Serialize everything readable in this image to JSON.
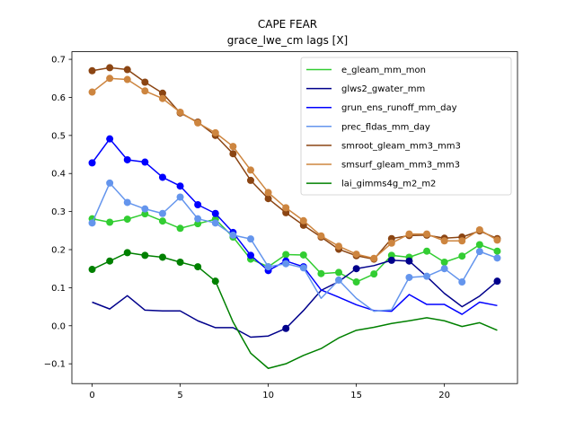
{
  "chart_data": {
    "type": "line",
    "title": "CAPE FEAR",
    "subtitle": "grace_lwe_cm lags [X]",
    "xlabel": "",
    "ylabel": "",
    "xlim": [
      -1.15,
      24.15
    ],
    "ylim": [
      -0.152,
      0.72
    ],
    "xticks": [
      0,
      5,
      10,
      15,
      20
    ],
    "yticks": [
      -0.1,
      0.0,
      0.1,
      0.2,
      0.3,
      0.4,
      0.5,
      0.6,
      0.7
    ],
    "ytick_labels": [
      "−0.1",
      "0.0",
      "0.1",
      "0.2",
      "0.3",
      "0.4",
      "0.5",
      "0.6",
      "0.7"
    ],
    "grid": false,
    "legend_position": "upper-right",
    "x": [
      0,
      1,
      2,
      3,
      4,
      5,
      6,
      7,
      8,
      9,
      10,
      11,
      12,
      13,
      14,
      15,
      16,
      17,
      18,
      19,
      20,
      21,
      22,
      23
    ],
    "series": [
      {
        "name": "e_gleam_mm_mon",
        "color": "#32cd32",
        "values": [
          0.281,
          0.272,
          0.28,
          0.294,
          0.275,
          0.256,
          0.268,
          0.28,
          0.233,
          0.175,
          0.155,
          0.187,
          0.186,
          0.137,
          0.14,
          0.115,
          0.136,
          0.185,
          0.18,
          0.196,
          0.167,
          0.183,
          0.213,
          0.196
        ],
        "markers": [
          true,
          true,
          true,
          true,
          true,
          true,
          true,
          true,
          true,
          true,
          true,
          true,
          true,
          true,
          true,
          true,
          true,
          true,
          true,
          true,
          true,
          true,
          true,
          true
        ]
      },
      {
        "name": "glws2_gwater_mm",
        "color": "#00008b",
        "values": [
          0.062,
          0.044,
          0.079,
          0.041,
          0.039,
          0.039,
          0.013,
          -0.005,
          -0.005,
          -0.03,
          -0.027,
          -0.007,
          0.04,
          0.093,
          0.116,
          0.15,
          0.158,
          0.172,
          0.17,
          0.129,
          0.085,
          0.05,
          0.078,
          0.117
        ],
        "markers": [
          false,
          false,
          false,
          false,
          false,
          false,
          false,
          false,
          false,
          false,
          false,
          true,
          false,
          false,
          false,
          true,
          false,
          true,
          true,
          false,
          false,
          false,
          false,
          true
        ]
      },
      {
        "name": "grun_ens_runoff_mm_day",
        "color": "#0000ff",
        "values": [
          0.428,
          0.491,
          0.436,
          0.43,
          0.39,
          0.367,
          0.318,
          0.295,
          0.245,
          0.185,
          0.145,
          0.17,
          0.155,
          0.094,
          0.075,
          0.055,
          0.04,
          0.038,
          0.082,
          0.056,
          0.056,
          0.03,
          0.062,
          0.053
        ],
        "markers": [
          true,
          true,
          true,
          true,
          true,
          true,
          true,
          true,
          true,
          true,
          true,
          true,
          true,
          false,
          false,
          false,
          false,
          false,
          false,
          false,
          false,
          false,
          false,
          false
        ]
      },
      {
        "name": "prec_fldas_mm_day",
        "color": "#6495ed",
        "values": [
          0.27,
          0.375,
          0.324,
          0.307,
          0.295,
          0.338,
          0.281,
          0.27,
          0.238,
          0.228,
          0.155,
          0.163,
          0.152,
          0.072,
          0.12,
          0.072,
          0.038,
          0.042,
          0.127,
          0.13,
          0.15,
          0.115,
          0.195,
          0.178
        ],
        "markers": [
          true,
          true,
          true,
          true,
          true,
          true,
          true,
          true,
          true,
          true,
          true,
          true,
          true,
          false,
          true,
          false,
          false,
          false,
          true,
          true,
          true,
          true,
          true,
          true
        ]
      },
      {
        "name": "smroot_gleam_mm3_mm3",
        "color": "#8b4513",
        "values": [
          0.67,
          0.678,
          0.673,
          0.64,
          0.611,
          0.559,
          0.535,
          0.5,
          0.452,
          0.382,
          0.334,
          0.297,
          0.264,
          0.233,
          0.201,
          0.184,
          0.175,
          0.229,
          0.237,
          0.238,
          0.23,
          0.233,
          0.249,
          0.229
        ],
        "markers": [
          true,
          true,
          true,
          true,
          true,
          true,
          true,
          true,
          true,
          true,
          true,
          true,
          true,
          true,
          true,
          true,
          true,
          true,
          true,
          true,
          true,
          true,
          true,
          true
        ]
      },
      {
        "name": "smsurf_gleam_mm3_mm3",
        "color": "#cd853f",
        "values": [
          0.614,
          0.65,
          0.647,
          0.617,
          0.597,
          0.561,
          0.533,
          0.507,
          0.471,
          0.409,
          0.35,
          0.31,
          0.276,
          0.236,
          0.209,
          0.188,
          0.177,
          0.217,
          0.241,
          0.241,
          0.223,
          0.223,
          0.252,
          0.225
        ],
        "markers": [
          true,
          true,
          true,
          true,
          true,
          true,
          true,
          true,
          true,
          true,
          true,
          true,
          true,
          true,
          true,
          true,
          true,
          true,
          true,
          true,
          true,
          true,
          true,
          true
        ]
      },
      {
        "name": "lai_gimms4g_m2_m2",
        "color": "#008000",
        "values": [
          0.148,
          0.17,
          0.192,
          0.185,
          0.18,
          0.167,
          0.155,
          0.117,
          0.01,
          -0.072,
          -0.112,
          -0.1,
          -0.078,
          -0.06,
          -0.032,
          -0.012,
          -0.004,
          0.006,
          0.013,
          0.021,
          0.013,
          -0.002,
          0.008,
          -0.012
        ],
        "markers": [
          true,
          true,
          true,
          true,
          true,
          true,
          true,
          true,
          false,
          false,
          false,
          false,
          false,
          false,
          false,
          false,
          false,
          false,
          false,
          false,
          false,
          false,
          false,
          false
        ]
      }
    ]
  }
}
